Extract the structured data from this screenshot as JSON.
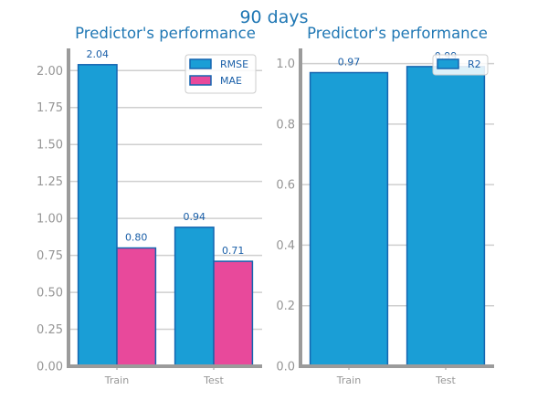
{
  "figure_title": "90 days",
  "colors": {
    "title": "#1f77b4",
    "rmse": "#1a9ed6",
    "mae": "#e8499b",
    "r2": "#1a9ed6",
    "bar_edge": "#1565b0",
    "value_label": "#1a5fa8",
    "axis": "#9b9b9b",
    "grid": "#cfcfcf",
    "tick_label": "#969696"
  },
  "chart_data": [
    {
      "type": "bar",
      "title": "Predictor's performance",
      "xlabel": "",
      "ylabel": "",
      "categories": [
        "Train",
        "Test"
      ],
      "series": [
        {
          "name": "RMSE",
          "values": [
            2.04,
            0.94
          ],
          "labels": [
            "2.04",
            "0.94"
          ]
        },
        {
          "name": "MAE",
          "values": [
            0.8,
            0.71
          ],
          "labels": [
            "0.80",
            "0.71"
          ]
        }
      ],
      "ylim": [
        0,
        2.15
      ],
      "yticks": [
        "0.00",
        "0.25",
        "0.50",
        "0.75",
        "1.00",
        "1.25",
        "1.50",
        "1.75",
        "2.00"
      ],
      "grid": "horizontal",
      "legend": "top-right"
    },
    {
      "type": "bar",
      "title": "Predictor's performance",
      "xlabel": "",
      "ylabel": "",
      "categories": [
        "Train",
        "Test"
      ],
      "series": [
        {
          "name": "R2",
          "values": [
            0.97,
            0.99
          ],
          "labels": [
            "0.97",
            "0.99"
          ]
        }
      ],
      "ylim": [
        0,
        1.05
      ],
      "yticks": [
        "0.0",
        "0.2",
        "0.4",
        "0.6",
        "0.8",
        "1.0"
      ],
      "grid": "horizontal",
      "legend": "top-right"
    }
  ]
}
